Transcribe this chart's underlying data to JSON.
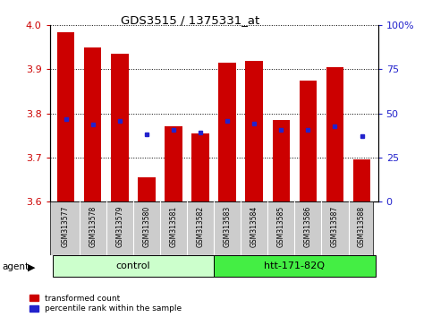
{
  "title": "GDS3515 / 1375331_at",
  "samples": [
    "GSM313577",
    "GSM313578",
    "GSM313579",
    "GSM313580",
    "GSM313581",
    "GSM313582",
    "GSM313583",
    "GSM313584",
    "GSM313585",
    "GSM313586",
    "GSM313587",
    "GSM313588"
  ],
  "transformed_count": [
    3.985,
    3.95,
    3.935,
    3.655,
    3.77,
    3.755,
    3.915,
    3.92,
    3.785,
    3.875,
    3.905,
    3.695
  ],
  "percentile_rank_y": [
    3.787,
    3.775,
    3.782,
    3.752,
    3.762,
    3.757,
    3.782,
    3.776,
    3.762,
    3.762,
    3.77,
    3.748
  ],
  "ylim": [
    3.6,
    4.0
  ],
  "yticks": [
    3.6,
    3.7,
    3.8,
    3.9,
    4.0
  ],
  "y2ticks": [
    0,
    25,
    50,
    75,
    100
  ],
  "y2labels": [
    "0",
    "25",
    "50",
    "75",
    "100%"
  ],
  "bar_color": "#cc0000",
  "dot_color": "#2222cc",
  "bar_width": 0.65,
  "groups": [
    {
      "label": "control",
      "start": 0,
      "end": 6,
      "color": "#ccffcc"
    },
    {
      "label": "htt-171-82Q",
      "start": 6,
      "end": 12,
      "color": "#44ee44"
    }
  ],
  "agent_label": "agent",
  "left_color": "#cc0000",
  "right_color": "#2222cc",
  "tick_bg_color": "#cccccc",
  "legend_labels": [
    "transformed count",
    "percentile rank within the sample"
  ]
}
